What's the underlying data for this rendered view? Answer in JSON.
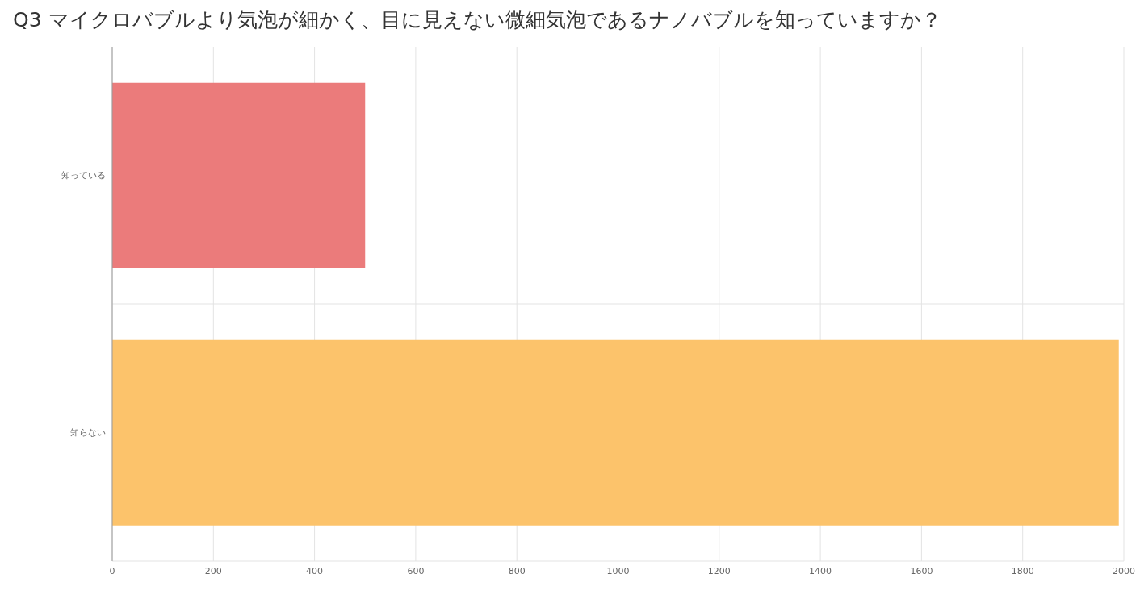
{
  "chart_data": {
    "type": "bar",
    "orientation": "horizontal",
    "title": "Q3 マイクロバブルより気泡が細かく、目に見えない微細気泡であるナノバブルを知っていますか？",
    "categories": [
      "知っている",
      "知らない"
    ],
    "values": [
      500,
      1990
    ],
    "colors": [
      "#eb7b7b",
      "#fcc36b"
    ],
    "xlim": [
      0,
      2000
    ],
    "xticks": [
      0,
      200,
      400,
      600,
      800,
      1000,
      1200,
      1400,
      1600,
      1800,
      2000
    ],
    "grid": true
  }
}
